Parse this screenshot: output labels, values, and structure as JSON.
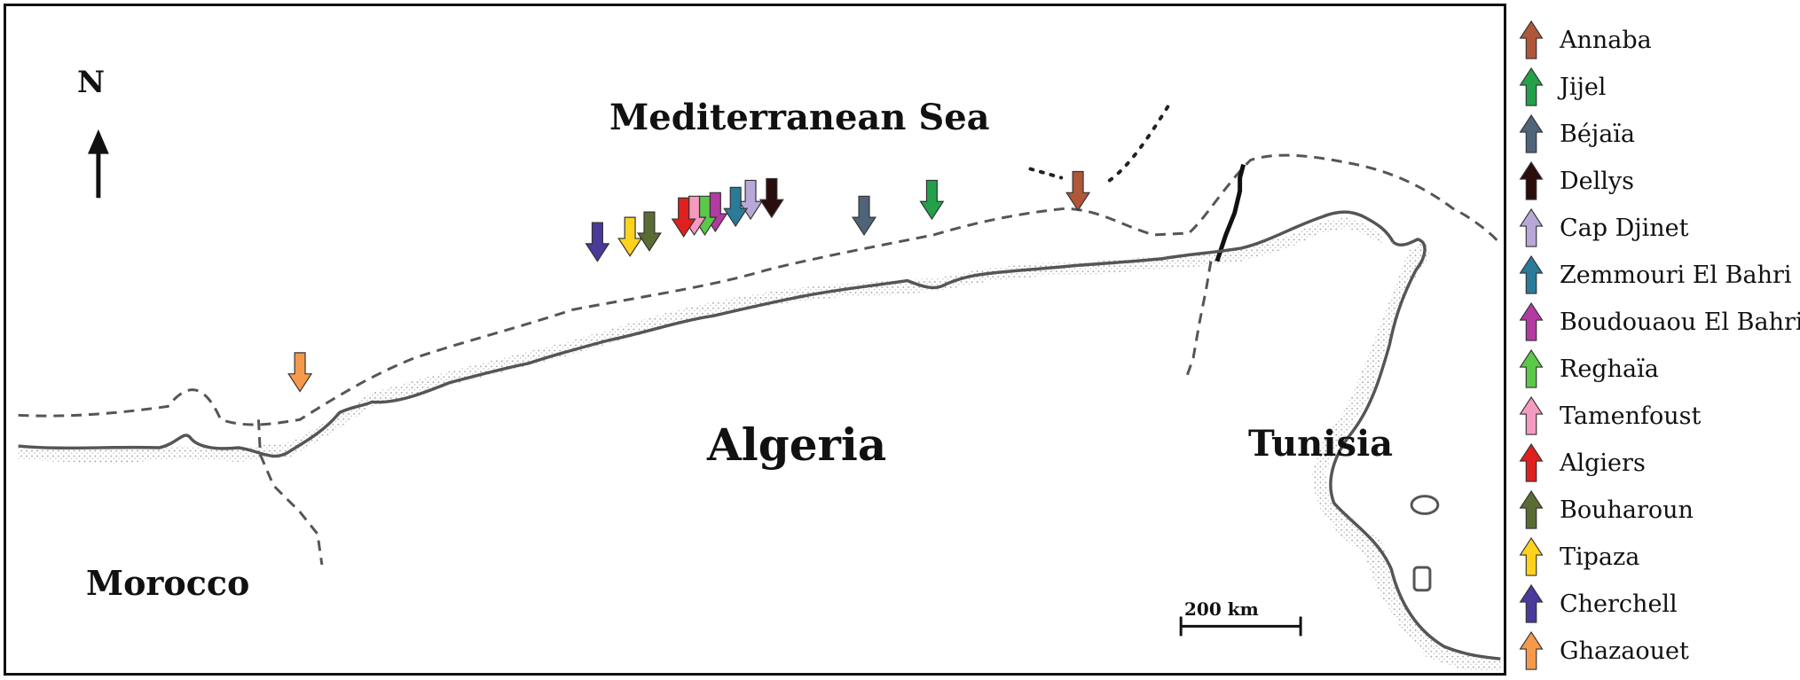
{
  "map": {
    "north_label": "N",
    "sea_label": "Mediterranean Sea",
    "algeria_label": "Algeria",
    "tunisia_label": "Tunisia",
    "morocco_label": "Morocco",
    "scale_label": "200 km"
  },
  "legend": [
    {
      "name": "Annaba",
      "color": "#b0573a"
    },
    {
      "name": "Jijel",
      "color": "#23a04a"
    },
    {
      "name": "Béjaïa",
      "color": "#4f6478"
    },
    {
      "name": "Dellys",
      "color": "#2a0d0d"
    },
    {
      "name": "Cap Djinet",
      "color": "#b8a8d8"
    },
    {
      "name": "Zemmouri El Bahri",
      "color": "#2a7a9a"
    },
    {
      "name": "Boudouaou El Bahri",
      "color": "#b23aa0"
    },
    {
      "name": "Reghaïa",
      "color": "#5cc84a"
    },
    {
      "name": "Tamenfoust",
      "color": "#f59ac0"
    },
    {
      "name": "Algiers",
      "color": "#e0201e"
    },
    {
      "name": "Bouharoun",
      "color": "#5a6b34"
    },
    {
      "name": "Tipaza",
      "color": "#ffd21e"
    },
    {
      "name": "Cherchell",
      "color": "#4a3a9a"
    },
    {
      "name": "Ghazaouet",
      "color": "#f59a4a"
    }
  ]
}
